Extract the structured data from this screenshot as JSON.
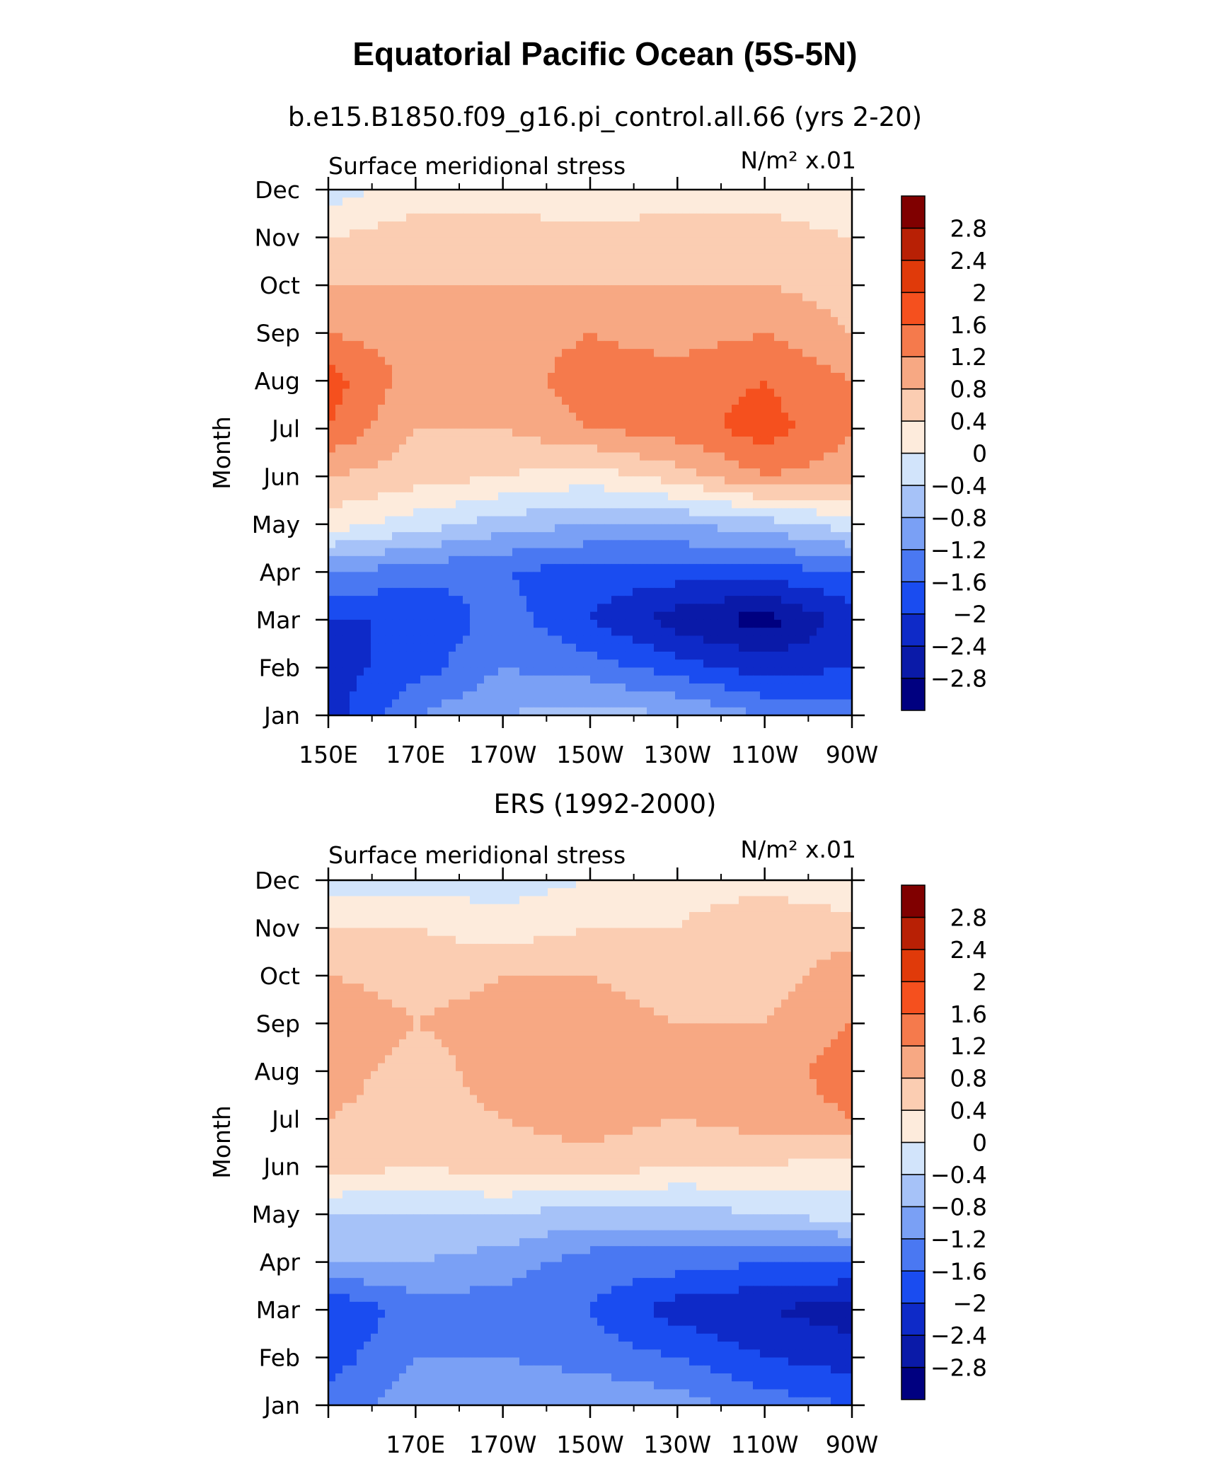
{
  "figure": {
    "title": "Equatorial Pacific Ocean (5S-5N)"
  },
  "colors": {
    "levels": [
      "#000080",
      "#0a1aa8",
      "#0e2ac8",
      "#1a4cf0",
      "#4a78f2",
      "#7aa0f5",
      "#a6c2f8",
      "#d2e4fb",
      "#fdebdc",
      "#fbcdb2",
      "#f7a883",
      "#f57a4c",
      "#f5501e",
      "#e03a0a",
      "#b82005",
      "#800000"
    ]
  },
  "colorbar": {
    "labels": [
      "-2.8",
      "-2.4",
      "-2",
      "-1.6",
      "-1.2",
      "-0.8",
      "-0.4",
      "0",
      "0.4",
      "0.8",
      "1.2",
      "1.6",
      "2",
      "2.4",
      "2.8"
    ]
  },
  "chart_data": [
    {
      "type": "heatmap",
      "subtitle": "b.e15.B1850.f09_g16.pi_control.all.66 (yrs 2-20)",
      "left_label": "Surface meridional stress",
      "right_label": "N/m² x.01",
      "ylabel": "Month",
      "xlabel": "",
      "x_tick_labels": [
        "150E",
        "170E",
        "170W",
        "150W",
        "130W",
        "110W",
        "90W"
      ],
      "y_tick_labels": [
        "Jan",
        "Feb",
        "Mar",
        "Apr",
        "May",
        "Jun",
        "Jul",
        "Aug",
        "Sep",
        "Oct",
        "Nov",
        "Dec"
      ],
      "x_range_deg_east": [
        150,
        270
      ],
      "x": [
        150,
        170,
        190,
        210,
        230,
        250,
        270
      ],
      "months": [
        "Jan",
        "Feb",
        "Mar",
        "Apr",
        "May",
        "Jun",
        "Jul",
        "Aug",
        "Sep",
        "Oct",
        "Nov",
        "Dec"
      ],
      "values": [
        [
          -2.2,
          -1.2,
          -0.8,
          -0.6,
          -0.8,
          -1.2,
          -1.4
        ],
        [
          -2.2,
          -1.8,
          -1.2,
          -1.4,
          -1.8,
          -2.2,
          -2.0
        ],
        [
          -2.0,
          -2.0,
          -1.4,
          -2.0,
          -2.6,
          -3.0,
          -2.2
        ],
        [
          -1.2,
          -1.4,
          -1.6,
          -1.8,
          -1.8,
          -1.8,
          -1.6
        ],
        [
          0.2,
          -0.2,
          -0.6,
          -0.8,
          -0.8,
          -0.6,
          -0.2
        ],
        [
          0.8,
          0.6,
          0.4,
          0.2,
          0.6,
          1.2,
          1.0
        ],
        [
          1.6,
          0.8,
          0.8,
          1.2,
          1.4,
          1.8,
          1.2
        ],
        [
          1.8,
          1.0,
          1.0,
          1.4,
          1.4,
          1.6,
          1.2
        ],
        [
          1.2,
          1.0,
          1.0,
          1.2,
          1.0,
          1.2,
          0.8
        ],
        [
          0.8,
          0.8,
          0.8,
          0.8,
          0.8,
          0.8,
          0.6
        ],
        [
          0.4,
          0.6,
          0.6,
          0.6,
          0.6,
          0.6,
          0.4
        ],
        [
          -0.2,
          0.2,
          0.2,
          0.0,
          0.2,
          0.2,
          0.0
        ]
      ]
    },
    {
      "type": "heatmap",
      "subtitle": "ERS (1992-2000)",
      "left_label": "Surface meridional stress",
      "right_label": "N/m² x.01",
      "ylabel": "Month",
      "xlabel": "",
      "x_tick_labels": [
        "170E",
        "170W",
        "150W",
        "130W",
        "110W",
        "90W"
      ],
      "y_tick_labels": [
        "Jan",
        "Feb",
        "Mar",
        "Apr",
        "May",
        "Jun",
        "Jul",
        "Aug",
        "Sep",
        "Oct",
        "Nov",
        "Dec"
      ],
      "x_range_deg_east": [
        150,
        270
      ],
      "x": [
        150,
        170,
        190,
        210,
        230,
        250,
        270
      ],
      "months": [
        "Jan",
        "Feb",
        "Mar",
        "Apr",
        "May",
        "Jun",
        "Jul",
        "Aug",
        "Sep",
        "Oct",
        "Nov",
        "Dec"
      ],
      "values": [
        [
          -1.4,
          -1.0,
          -0.8,
          -0.8,
          -1.0,
          -1.4,
          -1.6
        ],
        [
          -1.8,
          -1.2,
          -1.2,
          -1.4,
          -1.6,
          -2.0,
          -2.2
        ],
        [
          -2.0,
          -1.4,
          -1.4,
          -1.6,
          -2.2,
          -2.4,
          -2.6
        ],
        [
          -0.8,
          -0.8,
          -1.0,
          -1.4,
          -1.4,
          -1.6,
          -1.6
        ],
        [
          -0.4,
          -0.4,
          -0.4,
          -0.6,
          -0.6,
          -0.4,
          -0.2
        ],
        [
          0.6,
          0.4,
          0.6,
          0.6,
          0.4,
          0.4,
          0.2
        ],
        [
          0.8,
          0.6,
          0.8,
          1.0,
          0.8,
          1.0,
          1.2
        ],
        [
          1.0,
          0.6,
          1.0,
          1.0,
          1.0,
          1.0,
          1.4
        ],
        [
          1.2,
          0.8,
          1.0,
          1.0,
          0.8,
          0.8,
          1.2
        ],
        [
          0.8,
          0.6,
          0.8,
          0.8,
          0.6,
          0.6,
          1.0
        ],
        [
          0.4,
          0.4,
          0.2,
          0.4,
          0.4,
          0.8,
          0.6
        ],
        [
          -0.2,
          -0.2,
          -0.2,
          0.0,
          0.2,
          0.2,
          0.0
        ]
      ]
    }
  ]
}
